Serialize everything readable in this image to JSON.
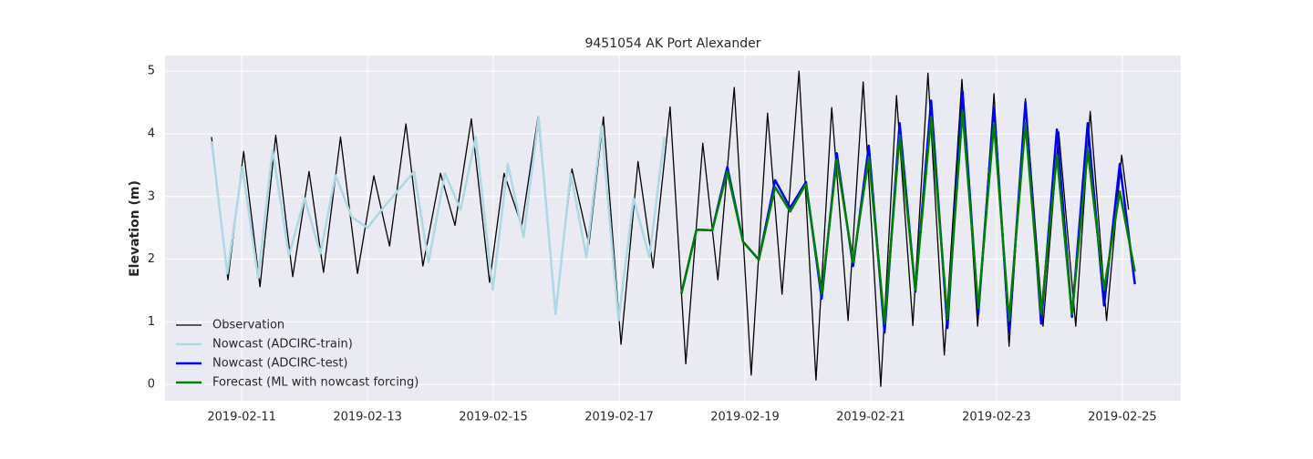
{
  "chart_data": {
    "type": "line",
    "title": "9451054 AK Port Alexander",
    "y_label": "Elevation (m)",
    "xlim": [
      9.78,
      25.93
    ],
    "ylim": [
      -0.26,
      5.25
    ],
    "xticks": [
      {
        "value": 11,
        "label": "2019-02-11"
      },
      {
        "value": 13,
        "label": "2019-02-13"
      },
      {
        "value": 15,
        "label": "2019-02-15"
      },
      {
        "value": 17,
        "label": "2019-02-17"
      },
      {
        "value": 19,
        "label": "2019-02-19"
      },
      {
        "value": 21,
        "label": "2019-02-21"
      },
      {
        "value": 23,
        "label": "2019-02-23"
      },
      {
        "value": 25,
        "label": "2019-02-25"
      }
    ],
    "yticks": [
      0,
      1,
      2,
      3,
      4,
      5
    ],
    "grid": true,
    "legend": "lower left",
    "series": [
      {
        "name": "Observation",
        "color": "#000000",
        "width": 1.3,
        "x": [
          10.52,
          10.78,
          11.03,
          11.29,
          11.54,
          11.81,
          12.07,
          12.3,
          12.57,
          12.84,
          13.1,
          13.35,
          13.61,
          13.88,
          14.16,
          14.39,
          14.65,
          14.94,
          15.17,
          15.45,
          15.71,
          15.99,
          16.25,
          16.52,
          16.75,
          17.03,
          17.3,
          17.54,
          17.81,
          18.06,
          18.33,
          18.57,
          18.83,
          19.1,
          19.36,
          19.59,
          19.86,
          20.13,
          20.38,
          20.64,
          20.88,
          21.16,
          21.41,
          21.67,
          21.91,
          22.17,
          22.45,
          22.7,
          22.96,
          23.2,
          23.46,
          23.74,
          23.99,
          24.26,
          24.49,
          24.75,
          24.99,
          25.1
        ],
        "values": [
          3.95,
          1.67,
          3.72,
          1.56,
          3.98,
          1.72,
          3.4,
          1.79,
          3.95,
          1.77,
          3.33,
          2.21,
          4.16,
          1.89,
          3.37,
          2.54,
          4.24,
          1.63,
          3.37,
          2.53,
          4.27,
          1.19,
          3.44,
          2.24,
          4.27,
          0.64,
          3.56,
          1.86,
          4.43,
          0.33,
          3.85,
          1.67,
          4.74,
          0.15,
          4.33,
          1.44,
          5.0,
          0.07,
          4.42,
          1.02,
          4.83,
          -0.03,
          4.61,
          0.94,
          4.97,
          0.47,
          4.87,
          0.93,
          4.64,
          0.61,
          4.56,
          0.93,
          4.03,
          0.93,
          4.36,
          1.02,
          3.66,
          2.79
        ]
      },
      {
        "name": "Nowcast (ADCIRC-train)",
        "color": "#add8e6",
        "width": 2.5,
        "x": [
          10.52,
          10.77,
          11.01,
          11.26,
          11.49,
          11.75,
          12.0,
          12.25,
          12.49,
          12.75,
          13.0,
          13.25,
          13.74,
          13.97,
          14.23,
          14.48,
          14.72,
          14.99,
          15.23,
          15.48,
          15.72,
          15.99,
          16.23,
          16.48,
          16.72,
          16.99,
          17.23,
          17.48,
          17.72
        ],
        "values": [
          3.88,
          1.77,
          3.47,
          1.7,
          3.74,
          2.06,
          2.97,
          2.09,
          3.34,
          2.67,
          2.5,
          2.82,
          3.4,
          1.95,
          3.37,
          2.79,
          3.95,
          1.51,
          3.52,
          2.35,
          4.27,
          1.12,
          3.37,
          2.03,
          4.13,
          1.02,
          2.97,
          2.03,
          3.95
        ]
      },
      {
        "name": "Nowcast (ADCIRC-test)",
        "color": "#0000ff",
        "width": 2.5,
        "x": [
          17.99,
          18.23,
          18.48,
          18.72,
          18.97,
          19.22,
          19.48,
          19.72,
          19.97,
          20.22,
          20.46,
          20.72,
          20.97,
          21.22,
          21.46,
          21.71,
          21.96,
          22.22,
          22.46,
          22.71,
          22.96,
          23.2,
          23.46,
          23.71,
          23.96,
          24.2,
          24.45,
          24.71,
          24.96,
          25.2
        ],
        "values": [
          1.45,
          2.47,
          2.46,
          3.47,
          2.28,
          1.99,
          3.26,
          2.82,
          3.23,
          1.37,
          3.69,
          1.89,
          3.81,
          0.83,
          4.17,
          1.48,
          4.53,
          0.9,
          4.68,
          1.12,
          4.42,
          0.83,
          4.51,
          0.97,
          4.07,
          1.08,
          4.17,
          1.26,
          3.52,
          1.6
        ]
      },
      {
        "name": "Forecast (ML with nowcast forcing)",
        "color": "#008000",
        "width": 2.5,
        "x": [
          17.99,
          18.23,
          18.48,
          18.72,
          18.97,
          19.22,
          19.48,
          19.72,
          19.97,
          20.22,
          20.46,
          20.72,
          20.97,
          21.22,
          21.46,
          21.71,
          21.96,
          22.22,
          22.46,
          22.71,
          22.96,
          23.2,
          23.46,
          23.71,
          23.96,
          24.2,
          24.45,
          24.71,
          24.96,
          25.2
        ],
        "values": [
          1.45,
          2.47,
          2.46,
          3.4,
          2.28,
          1.99,
          3.15,
          2.76,
          3.2,
          1.45,
          3.59,
          1.95,
          3.63,
          0.97,
          3.98,
          1.51,
          4.27,
          1.05,
          4.36,
          1.22,
          4.17,
          1.02,
          4.17,
          1.12,
          3.66,
          1.12,
          3.74,
          1.51,
          3.08,
          1.8
        ]
      }
    ]
  }
}
